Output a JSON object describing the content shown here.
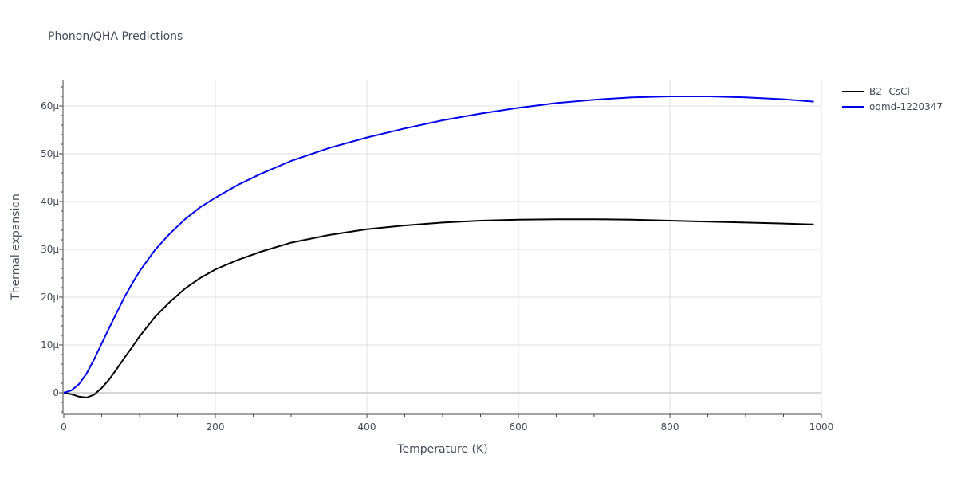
{
  "chart_data": {
    "type": "line",
    "title": "Phonon/QHA Predictions",
    "xlabel": "Temperature (K)",
    "ylabel": "Thermal expansion",
    "xlim": [
      0,
      1000
    ],
    "ylim": [
      -4.5,
      65.5
    ],
    "x_ticks": [
      0,
      200,
      400,
      600,
      800,
      1000
    ],
    "x_tick_labels": [
      "0",
      "200",
      "400",
      "600",
      "800",
      "1000"
    ],
    "y_ticks": [
      0,
      10,
      20,
      30,
      40,
      50,
      60
    ],
    "y_tick_labels": [
      "0",
      "10μ",
      "20μ",
      "30μ",
      "40μ",
      "50μ",
      "60μ"
    ],
    "grid": true,
    "legend": "right",
    "series": [
      {
        "name": "B2--CsCl",
        "color": "#000000",
        "x": [
          0,
          10,
          20,
          30,
          40,
          50,
          60,
          70,
          80,
          90,
          100,
          120,
          140,
          160,
          180,
          200,
          230,
          260,
          300,
          350,
          400,
          450,
          500,
          550,
          600,
          650,
          700,
          750,
          800,
          850,
          900,
          950,
          990
        ],
        "y": [
          0,
          -0.3,
          -0.8,
          -1.0,
          -0.4,
          1.0,
          2.8,
          5.0,
          7.3,
          9.5,
          11.8,
          15.8,
          19.0,
          21.8,
          24.0,
          25.8,
          27.8,
          29.5,
          31.4,
          33.0,
          34.2,
          35.0,
          35.6,
          36.0,
          36.2,
          36.3,
          36.3,
          36.2,
          36.0,
          35.8,
          35.6,
          35.4,
          35.2
        ]
      },
      {
        "name": "oqmd-1220347",
        "color": "#0000ee",
        "x": [
          0,
          10,
          20,
          30,
          40,
          50,
          60,
          70,
          80,
          90,
          100,
          120,
          140,
          160,
          180,
          200,
          230,
          260,
          300,
          350,
          400,
          450,
          500,
          550,
          600,
          650,
          700,
          750,
          800,
          850,
          900,
          950,
          990
        ],
        "y": [
          0,
          0.5,
          1.8,
          4.0,
          7.0,
          10.3,
          13.6,
          16.8,
          20.0,
          22.8,
          25.4,
          29.8,
          33.3,
          36.3,
          38.8,
          40.8,
          43.5,
          45.8,
          48.5,
          51.2,
          53.4,
          55.3,
          57.0,
          58.4,
          59.6,
          60.6,
          61.3,
          61.8,
          62.0,
          62.0,
          61.8,
          61.4,
          60.9
        ]
      }
    ]
  }
}
